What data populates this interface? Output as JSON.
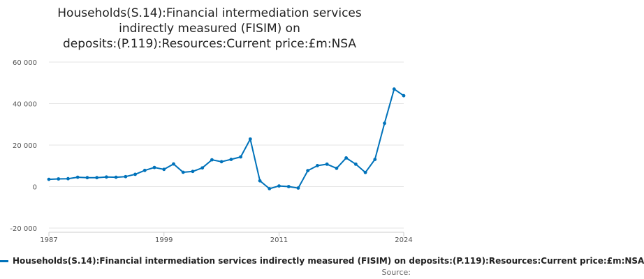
{
  "title_lines": [
    "Households(S.14):Financial intermediation services",
    "indirectly measured (FISIM) on",
    "deposits:(P.119):Resources:Current price:£m:NSA"
  ],
  "source_label": "Source:",
  "chart_data": {
    "type": "line",
    "title": "Households(S.14):Financial intermediation services indirectly measured (FISIM) on deposits:(P.119):Resources:Current price:£m:NSA",
    "x": [
      1987,
      1988,
      1989,
      1990,
      1991,
      1992,
      1993,
      1994,
      1995,
      1996,
      1997,
      1998,
      1999,
      2000,
      2001,
      2002,
      2003,
      2004,
      2005,
      2006,
      2007,
      2008,
      2009,
      2010,
      2011,
      2012,
      2013,
      2014,
      2015,
      2016,
      2017,
      2018,
      2019,
      2020,
      2021,
      2022,
      2023,
      2024
    ],
    "series": [
      {
        "name": "Households(S.14):Financial intermediation services indirectly measured (FISIM) on deposits:(P.119):Resources:Current price:£m:NSA",
        "color": "#0072ba",
        "values": [
          3500,
          3700,
          3800,
          4500,
          4300,
          4300,
          4600,
          4500,
          4800,
          5900,
          7800,
          9200,
          8300,
          10900,
          6900,
          7300,
          9000,
          12900,
          12000,
          13100,
          14300,
          22900,
          2800,
          -1000,
          300,
          0,
          -700,
          7700,
          10100,
          10800,
          8800,
          13800,
          10800,
          6800,
          13100,
          30500,
          47000,
          43800
        ]
      }
    ],
    "ylim": [
      -20000,
      60000
    ],
    "y_ticks": [
      -20000,
      0,
      20000,
      40000,
      60000
    ],
    "y_tick_labels": [
      "-20 000",
      "0",
      "20 000",
      "40 000",
      "60 000"
    ],
    "x_ticks": [
      1987,
      1999,
      2011,
      2024
    ],
    "x_tick_labels": [
      "1987",
      "1999",
      "2011",
      "2024"
    ],
    "grid": true,
    "legend_position": "bottom"
  }
}
